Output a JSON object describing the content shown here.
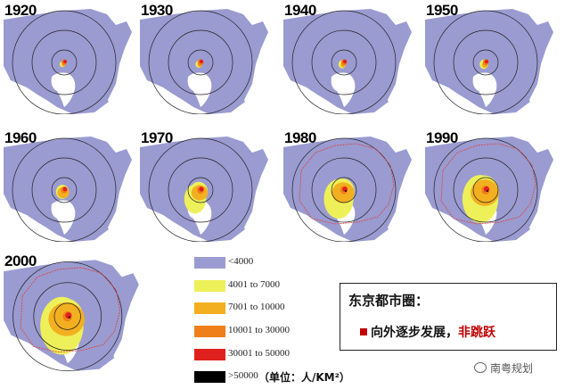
{
  "panels": [
    {
      "year": "1920"
    },
    {
      "year": "1930"
    },
    {
      "year": "1940"
    },
    {
      "year": "1950"
    },
    {
      "year": "1960"
    },
    {
      "year": "1970"
    },
    {
      "year": "1980"
    },
    {
      "year": "1990"
    },
    {
      "year": "2000"
    }
  ],
  "legend": {
    "items": [
      {
        "label": "<4000",
        "color": "#9a9bd0"
      },
      {
        "label": "4001 to 7000",
        "color": "#eef05a"
      },
      {
        "label": "7001 to 10000",
        "color": "#f2b020"
      },
      {
        "label": "10001 to 30000",
        "color": "#ef7f1a"
      },
      {
        "label": "30001 to 50000",
        "color": "#e0201c"
      },
      {
        "label": ">50000",
        "color": "#000000"
      }
    ],
    "unit": "（单位：人/KM²）"
  },
  "note": {
    "title": "东京都市圈：",
    "line_black": "向外逐步发展，",
    "line_red": "非跳跃"
  },
  "watermark": "南粤规划",
  "colors": {
    "land": "#9a9bd0",
    "water": "#ffffff",
    "rings": "#222222",
    "boundary": "#e04040"
  }
}
